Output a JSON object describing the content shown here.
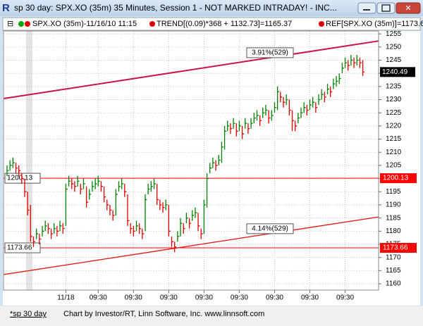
{
  "window": {
    "title": "sp 30 day: SPX.XO (35m) 35 Minutes, Session 1 - NOT MARKED INTRADAY! - INC..."
  },
  "legend": [
    "SPX.XO (35m)-11/16/10 11:15",
    "TREND[(0.09)*368 + 1132.73]=1165.37",
    "REF[SPX.XO (35m)]=1173.6"
  ],
  "chart_data": {
    "type": "ohlc",
    "categories": [
      null,
      null,
      null,
      null,
      null,
      null,
      null,
      null,
      null,
      null,
      null,
      null,
      null,
      null,
      null,
      null,
      null,
      null,
      null,
      null,
      "11/18",
      null,
      null,
      null,
      null,
      null,
      null,
      null,
      null,
      null,
      null,
      "09:30",
      null,
      null,
      null,
      null,
      null,
      null,
      null,
      null,
      null,
      null,
      null,
      "09:30",
      null,
      null,
      null,
      null,
      null,
      null,
      null,
      null,
      null,
      null,
      null,
      "09:30",
      null,
      null,
      null,
      null,
      null,
      null,
      null,
      null,
      null,
      null,
      null,
      "09:30",
      null,
      null,
      null,
      null,
      null,
      null,
      null,
      null,
      null,
      null,
      null,
      "09:30",
      null,
      null,
      null,
      null,
      null,
      null,
      null,
      null,
      null,
      null,
      null,
      "09:30",
      null,
      null,
      null,
      null,
      null,
      null,
      null,
      null,
      null,
      null,
      null,
      "09:30",
      null,
      null,
      null,
      null,
      null,
      null,
      null,
      null,
      null,
      null,
      null,
      "09:30",
      null,
      null,
      null,
      null,
      null,
      null
    ],
    "high": [
      1205,
      1207,
      1208,
      1206,
      1205,
      1202,
      1200,
      1195,
      1190,
      1178,
      1181,
      1179,
      1182,
      1184,
      1183,
      1181,
      1183,
      1182,
      1184,
      1183,
      1198,
      1201,
      1200,
      1199,
      1201,
      1198,
      1200,
      1197,
      1196,
      1199,
      1200,
      1201,
      1199,
      1197,
      1192,
      1190,
      1188,
      1196,
      1199,
      1200,
      1198,
      1194,
      1183,
      1182,
      1184,
      1183,
      1181,
      1194,
      1198,
      1199,
      1200,
      1198,
      1192,
      1191,
      1192,
      1190,
      1178,
      1176,
      1180,
      1185,
      1183,
      1187,
      1185,
      1188,
      1189,
      1187,
      1181,
      1192,
      1202,
      1206,
      1208,
      1207,
      1209,
      1214,
      1220,
      1222,
      1221,
      1223,
      1221,
      1222,
      1220,
      1223,
      1221,
      1223,
      1225,
      1226,
      1224,
      1227,
      1228,
      1226,
      1226,
      1229,
      1235,
      1233,
      1231,
      1232,
      1230,
      1226,
      1222,
      1225,
      1227,
      1229,
      1228,
      1230,
      1231,
      1229,
      1232,
      1234,
      1233,
      1236,
      1235,
      1238,
      1239,
      1240,
      1244,
      1246,
      1245,
      1247,
      1246,
      1247,
      1246,
      1245
    ],
    "low": [
      1201,
      1203,
      1204,
      1202,
      1201,
      1198,
      1193,
      1186,
      1176,
      1174,
      1177,
      1175,
      1178,
      1180,
      1179,
      1177,
      1179,
      1178,
      1180,
      1179,
      1182,
      1197,
      1196,
      1195,
      1197,
      1194,
      1196,
      1189,
      1192,
      1195,
      1196,
      1197,
      1195,
      1191,
      1188,
      1186,
      1184,
      1186,
      1195,
      1196,
      1193,
      1182,
      1179,
      1178,
      1180,
      1179,
      1177,
      1180,
      1194,
      1195,
      1196,
      1190,
      1188,
      1187,
      1188,
      1178,
      1174,
      1172,
      1176,
      1178,
      1179,
      1183,
      1181,
      1184,
      1185,
      1180,
      1177,
      1179,
      1189,
      1202,
      1204,
      1203,
      1205,
      1206,
      1211,
      1218,
      1217,
      1219,
      1216,
      1218,
      1215,
      1219,
      1217,
      1219,
      1221,
      1222,
      1220,
      1223,
      1224,
      1221,
      1222,
      1225,
      1226,
      1229,
      1227,
      1228,
      1224,
      1218,
      1218,
      1221,
      1223,
      1225,
      1224,
      1226,
      1227,
      1225,
      1228,
      1230,
      1229,
      1232,
      1231,
      1234,
      1235,
      1236,
      1240,
      1242,
      1241,
      1243,
      1242,
      1243,
      1242,
      1239
    ],
    "close": [
      1203,
      1205,
      1206,
      1204,
      1203,
      1200,
      1195,
      1188,
      1178,
      1176,
      1179,
      1177,
      1180,
      1182,
      1181,
      1179,
      1181,
      1180,
      1182,
      1181,
      1196,
      1199,
      1198,
      1197,
      1199,
      1196,
      1198,
      1191,
      1194,
      1197,
      1198,
      1199,
      1197,
      1193,
      1190,
      1188,
      1186,
      1194,
      1197,
      1198,
      1195,
      1184,
      1181,
      1180,
      1182,
      1181,
      1179,
      1192,
      1196,
      1197,
      1198,
      1192,
      1190,
      1189,
      1190,
      1180,
      1176,
      1174,
      1178,
      1183,
      1181,
      1185,
      1183,
      1186,
      1187,
      1182,
      1179,
      1190,
      1200,
      1204,
      1206,
      1205,
      1207,
      1212,
      1218,
      1220,
      1219,
      1221,
      1218,
      1220,
      1217,
      1221,
      1219,
      1221,
      1223,
      1224,
      1222,
      1225,
      1226,
      1223,
      1224,
      1227,
      1233,
      1231,
      1229,
      1230,
      1226,
      1222,
      1220,
      1223,
      1225,
      1227,
      1226,
      1228,
      1229,
      1227,
      1230,
      1232,
      1231,
      1234,
      1233,
      1236,
      1237,
      1238,
      1242,
      1244,
      1243,
      1245,
      1244,
      1245,
      1244,
      1240.49
    ],
    "up_color": "#008000",
    "down_color": "#e00000",
    "ylim": [
      1157.6,
      1256.1
    ],
    "yticks": [
      1160,
      1165,
      1170,
      1175,
      1180,
      1185,
      1190,
      1195,
      1200,
      1205,
      1210,
      1215,
      1220,
      1225,
      1230,
      1235,
      1240,
      1245,
      1250,
      1255
    ],
    "grid": true,
    "trend_lines": [
      {
        "label": "3.91%(529)",
        "values": [
          1230.4,
          1252.3
        ],
        "color": "#c8144c"
      },
      {
        "label": "4.14%(529)",
        "values": [
          1163.5,
          1185.4
        ],
        "color": "#e02020"
      }
    ],
    "reference_lines": [
      1200.13,
      1173.66
    ],
    "reference_color": "#ff0000"
  },
  "status": {
    "tab": "*sp 30 day",
    "credit": "Chart by Investor/RT, Linn Software, Inc. www.linnsoft.com"
  }
}
